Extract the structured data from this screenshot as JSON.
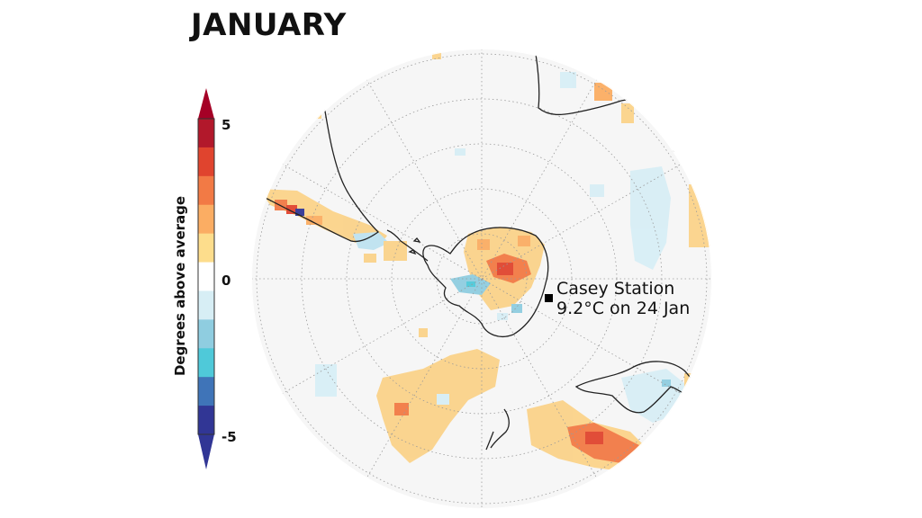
{
  "title": "JANUARY",
  "colorbar": {
    "label": "Degrees above average",
    "ticks": [
      "5",
      "0",
      "-5"
    ],
    "colors": [
      "#313695",
      "#3f74b8",
      "#4fc9d9",
      "#8fcde0",
      "#d7eef5",
      "#ffffff",
      "#fddd8c",
      "#fbad63",
      "#f27a45",
      "#e0442e",
      "#b2182b"
    ],
    "extend_low_color": "#313695",
    "extend_high_color": "#a50026"
  },
  "annotation": {
    "marker": "square-marker",
    "line1": "Casey Station",
    "line2": "9.2°C on 24 Jan"
  },
  "map": {
    "projection": "south-polar-stereographic",
    "background": "#f6f6f6",
    "grid": "dotted"
  }
}
